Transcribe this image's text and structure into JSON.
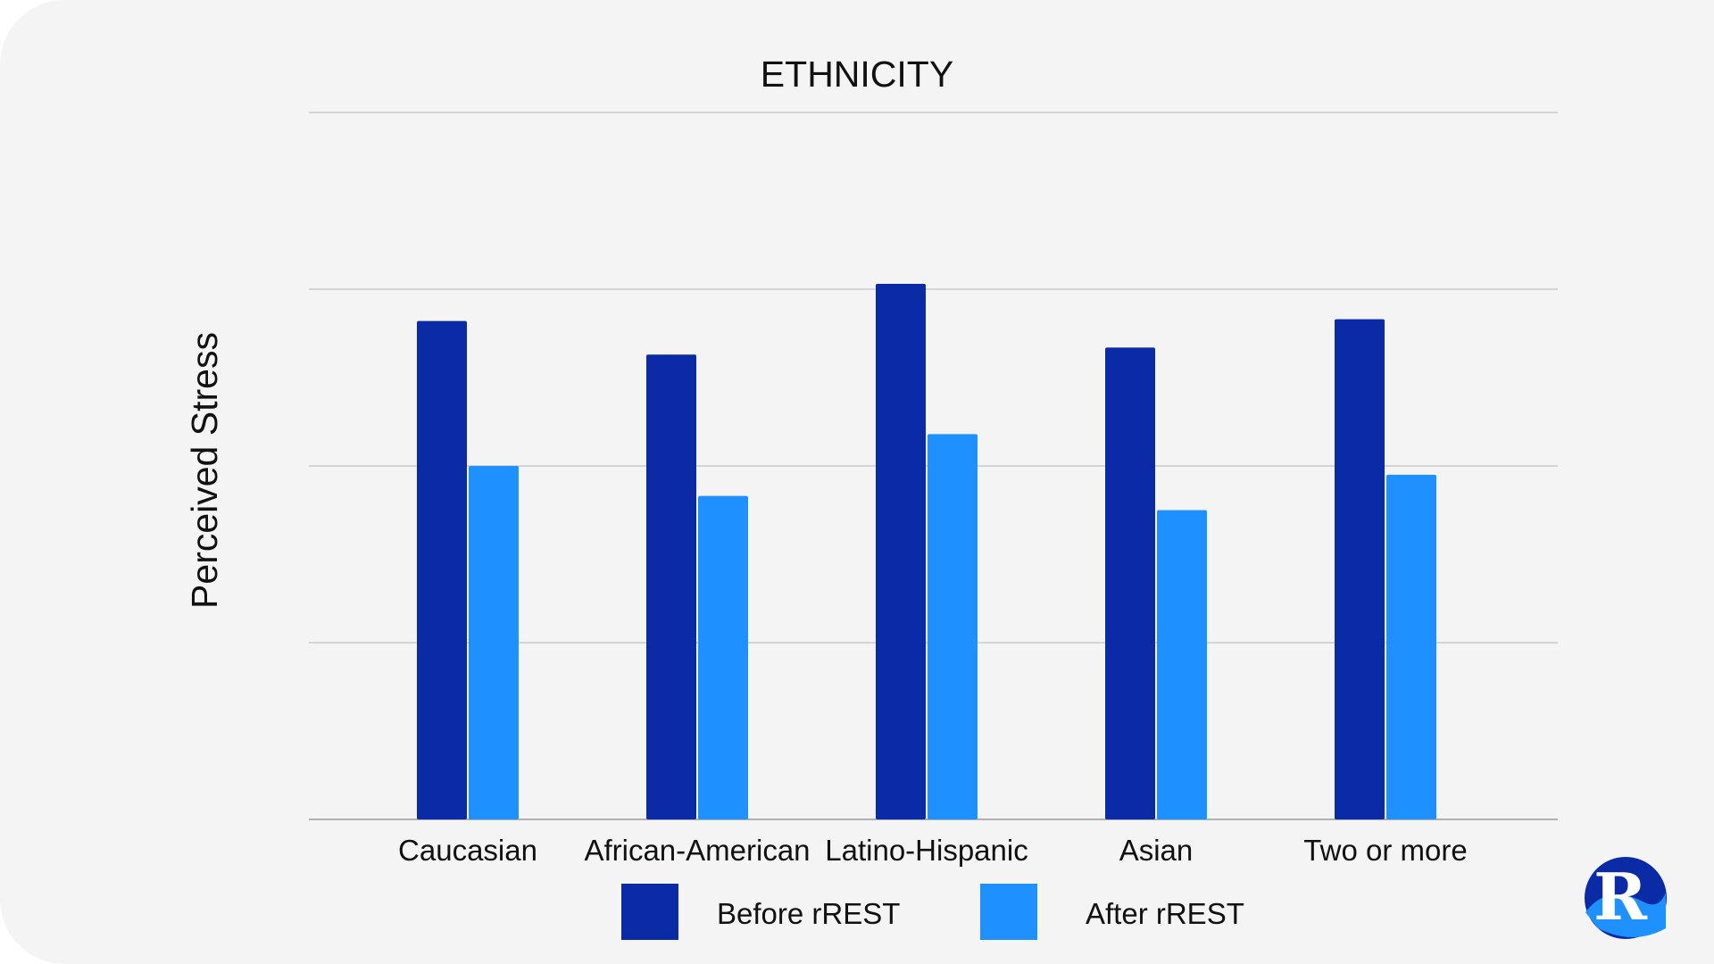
{
  "chart_data": {
    "type": "bar",
    "title": "ETHNICITY",
    "xlabel": "",
    "ylabel": "Perceived Stress",
    "categories": [
      "Caucasian",
      "African-American",
      "Latino-Hispanic",
      "Asian",
      "Two or more"
    ],
    "series": [
      {
        "name": "Before rREST",
        "color": "#0a2aa6",
        "values": [
          28.2,
          26.3,
          30.3,
          26.7,
          28.3
        ]
      },
      {
        "name": "After rREST",
        "color": "#1e90ff",
        "values": [
          20.0,
          18.3,
          21.8,
          17.5,
          19.5
        ]
      }
    ],
    "ylim": [
      0,
      40
    ],
    "y_gridlines": [
      0,
      10,
      20,
      30,
      40
    ],
    "y_tick_labels_shown": false,
    "grid": true,
    "legend_position": "bottom-center"
  },
  "logo": {
    "icon": "rrest-logo-icon",
    "letter": "R",
    "colors": {
      "primary": "#0a2aa6",
      "secondary": "#1e90ff"
    }
  }
}
